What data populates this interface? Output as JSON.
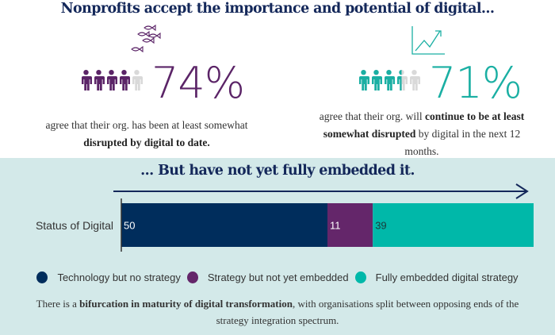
{
  "header": {
    "title": "Nonprofits accept the importance and potential of digital..."
  },
  "stats": [
    {
      "icon": "fish-school-icon",
      "value": "74%",
      "people_filled": 4,
      "people_total": 5,
      "color": "#5b2467",
      "caption_plain": "agree that their org. has been at least somewhat",
      "caption_bold": "disrupted by digital to date."
    },
    {
      "icon": "trend-chart-icon",
      "value": "71%",
      "people_filled": 3.5,
      "people_total": 5,
      "color": "#1aafa3",
      "caption_plain_1": "agree  that their org. will ",
      "caption_bold_1": "continue to be at least somewhat disrupted",
      "caption_plain_2": " by digital in the next 12 months."
    }
  ],
  "section": {
    "title": "...  But have not yet fully embedded it."
  },
  "chart_data": {
    "type": "bar",
    "orientation": "horizontal",
    "stacked": true,
    "categories": [
      "Status of Digital"
    ],
    "series": [
      {
        "name": "Technology but no strategy",
        "values": [
          50
        ],
        "color": "#002d5c"
      },
      {
        "name": "Strategy but not yet embedded",
        "values": [
          11
        ],
        "color": "#64266a"
      },
      {
        "name": "Fully embedded digital strategy",
        "values": [
          39
        ],
        "color": "#00b8a9"
      }
    ],
    "xlim": [
      0,
      100
    ],
    "title": "...  But have not yet fully embedded it.",
    "xlabel": "",
    "ylabel": "",
    "grid": false,
    "legend_position": "bottom"
  },
  "colors": {
    "navy": "#14285a",
    "band": "#d3e9e9",
    "person_empty": "#d9d9d9"
  },
  "footer": {
    "plain_1": "There is a ",
    "bold": "bifurcation in maturity of digital transformation",
    "plain_2": ", with organisations split between opposing ends of the strategy integration spectrum."
  }
}
